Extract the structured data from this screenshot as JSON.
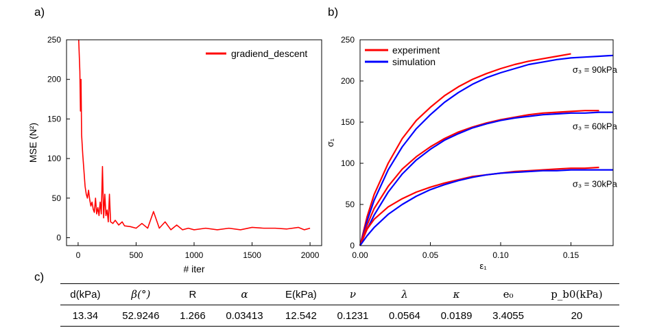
{
  "panel_labels": {
    "a": "a)",
    "b": "b)",
    "c": "c)"
  },
  "chart_data": [
    {
      "type": "line",
      "panel": "a)",
      "xlabel": "# iter",
      "ylabel": "MSE  (N²)",
      "xlim": [
        -100,
        2100
      ],
      "ylim": [
        -10,
        250
      ],
      "xticks": [
        0,
        500,
        1000,
        1500,
        2000
      ],
      "yticks": [
        0,
        50,
        100,
        150,
        200,
        250
      ],
      "legend": "top-right",
      "series": [
        {
          "name": "gradiend_descent",
          "color": "#ff0000",
          "points": [
            [
              5,
              250
            ],
            [
              10,
              230
            ],
            [
              15,
              210
            ],
            [
              20,
              160
            ],
            [
              25,
              200
            ],
            [
              30,
              130
            ],
            [
              40,
              105
            ],
            [
              50,
              85
            ],
            [
              60,
              65
            ],
            [
              70,
              55
            ],
            [
              80,
              50
            ],
            [
              90,
              60
            ],
            [
              100,
              48
            ],
            [
              110,
              40
            ],
            [
              120,
              45
            ],
            [
              130,
              36
            ],
            [
              140,
              32
            ],
            [
              150,
              50
            ],
            [
              160,
              30
            ],
            [
              170,
              38
            ],
            [
              180,
              28
            ],
            [
              190,
              45
            ],
            [
              200,
              30
            ],
            [
              210,
              90
            ],
            [
              220,
              25
            ],
            [
              230,
              55
            ],
            [
              240,
              28
            ],
            [
              250,
              35
            ],
            [
              260,
              20
            ],
            [
              270,
              55
            ],
            [
              280,
              20
            ],
            [
              300,
              18
            ],
            [
              320,
              22
            ],
            [
              350,
              16
            ],
            [
              380,
              20
            ],
            [
              400,
              15
            ],
            [
              450,
              14
            ],
            [
              500,
              12
            ],
            [
              550,
              18
            ],
            [
              600,
              12
            ],
            [
              650,
              33
            ],
            [
              700,
              12
            ],
            [
              750,
              20
            ],
            [
              800,
              10
            ],
            [
              850,
              16
            ],
            [
              900,
              10
            ],
            [
              950,
              12
            ],
            [
              1000,
              10
            ],
            [
              1100,
              12
            ],
            [
              1200,
              10
            ],
            [
              1300,
              12
            ],
            [
              1400,
              10
            ],
            [
              1500,
              13
            ],
            [
              1600,
              12
            ],
            [
              1700,
              12
            ],
            [
              1800,
              11
            ],
            [
              1900,
              13
            ],
            [
              1950,
              10
            ],
            [
              2000,
              12
            ]
          ]
        }
      ]
    },
    {
      "type": "line",
      "panel": "b)",
      "xlabel": "ε₁",
      "ylabel": "σ₁",
      "xlim": [
        0,
        0.18
      ],
      "ylim": [
        0,
        250
      ],
      "xticks": [
        0.0,
        0.05,
        0.1,
        0.15
      ],
      "xtick_labels": [
        "0.00",
        "0.05",
        "0.10",
        "0.15"
      ],
      "yticks": [
        0,
        50,
        100,
        150,
        200,
        250
      ],
      "legend": "top-left",
      "series": [
        {
          "name": "experiment",
          "color": "#ff0000"
        },
        {
          "name": "simulation",
          "color": "#0000ff"
        }
      ],
      "curves": [
        {
          "annotation": "σ₃ = 90kPa",
          "experiment": [
            [
              0,
              0
            ],
            [
              0.005,
              35
            ],
            [
              0.01,
              62
            ],
            [
              0.02,
              100
            ],
            [
              0.03,
              130
            ],
            [
              0.04,
              152
            ],
            [
              0.05,
              168
            ],
            [
              0.06,
              182
            ],
            [
              0.07,
              193
            ],
            [
              0.08,
              202
            ],
            [
              0.09,
              209
            ],
            [
              0.1,
              215
            ],
            [
              0.11,
              220
            ],
            [
              0.12,
              224
            ],
            [
              0.13,
              227
            ],
            [
              0.14,
              230
            ],
            [
              0.15,
              233
            ]
          ],
          "simulation": [
            [
              0,
              0
            ],
            [
              0.005,
              30
            ],
            [
              0.01,
              55
            ],
            [
              0.02,
              92
            ],
            [
              0.03,
              120
            ],
            [
              0.04,
              142
            ],
            [
              0.05,
              159
            ],
            [
              0.06,
              174
            ],
            [
              0.07,
              186
            ],
            [
              0.08,
              196
            ],
            [
              0.09,
              204
            ],
            [
              0.1,
              210
            ],
            [
              0.11,
              215
            ],
            [
              0.12,
              220
            ],
            [
              0.13,
              223
            ],
            [
              0.14,
              226
            ],
            [
              0.15,
              228
            ],
            [
              0.16,
              229
            ],
            [
              0.17,
              230
            ],
            [
              0.18,
              231
            ]
          ]
        },
        {
          "annotation": "σ₃ = 60kPa",
          "experiment": [
            [
              0,
              0
            ],
            [
              0.005,
              25
            ],
            [
              0.01,
              45
            ],
            [
              0.02,
              72
            ],
            [
              0.03,
              93
            ],
            [
              0.04,
              108
            ],
            [
              0.05,
              120
            ],
            [
              0.06,
              130
            ],
            [
              0.07,
              138
            ],
            [
              0.08,
              144
            ],
            [
              0.09,
              149
            ],
            [
              0.1,
              153
            ],
            [
              0.11,
              156
            ],
            [
              0.12,
              159
            ],
            [
              0.13,
              161
            ],
            [
              0.14,
              162
            ],
            [
              0.15,
              163
            ],
            [
              0.16,
              164
            ],
            [
              0.17,
              164
            ]
          ],
          "simulation": [
            [
              0,
              0
            ],
            [
              0.005,
              20
            ],
            [
              0.01,
              37
            ],
            [
              0.02,
              65
            ],
            [
              0.03,
              87
            ],
            [
              0.04,
              104
            ],
            [
              0.05,
              117
            ],
            [
              0.06,
              128
            ],
            [
              0.07,
              136
            ],
            [
              0.08,
              143
            ],
            [
              0.09,
              148
            ],
            [
              0.1,
              152
            ],
            [
              0.11,
              155
            ],
            [
              0.12,
              157
            ],
            [
              0.13,
              159
            ],
            [
              0.14,
              160
            ],
            [
              0.15,
              161
            ],
            [
              0.16,
              161
            ],
            [
              0.17,
              162
            ],
            [
              0.18,
              162
            ]
          ]
        },
        {
          "annotation": "σ₃ = 30kPa",
          "experiment": [
            [
              0,
              0
            ],
            [
              0.005,
              20
            ],
            [
              0.01,
              32
            ],
            [
              0.02,
              47
            ],
            [
              0.03,
              57
            ],
            [
              0.04,
              65
            ],
            [
              0.05,
              71
            ],
            [
              0.06,
              76
            ],
            [
              0.07,
              80
            ],
            [
              0.08,
              84
            ],
            [
              0.09,
              86
            ],
            [
              0.1,
              88
            ],
            [
              0.11,
              90
            ],
            [
              0.12,
              91
            ],
            [
              0.13,
              92
            ],
            [
              0.14,
              93
            ],
            [
              0.15,
              94
            ],
            [
              0.16,
              94
            ],
            [
              0.17,
              95
            ]
          ],
          "simulation": [
            [
              0,
              0
            ],
            [
              0.005,
              12
            ],
            [
              0.01,
              22
            ],
            [
              0.02,
              38
            ],
            [
              0.03,
              50
            ],
            [
              0.04,
              60
            ],
            [
              0.05,
              68
            ],
            [
              0.06,
              74
            ],
            [
              0.07,
              79
            ],
            [
              0.08,
              83
            ],
            [
              0.09,
              86
            ],
            [
              0.1,
              88
            ],
            [
              0.11,
              89
            ],
            [
              0.12,
              90
            ],
            [
              0.13,
              91
            ],
            [
              0.14,
              91
            ],
            [
              0.15,
              92
            ],
            [
              0.16,
              92
            ],
            [
              0.17,
              92
            ],
            [
              0.18,
              92
            ]
          ]
        }
      ]
    }
  ],
  "table": {
    "headers": [
      {
        "text": "d(kPa)",
        "style": "plain"
      },
      {
        "text": "β(°)",
        "style": "sym"
      },
      {
        "text": "R",
        "style": "plain"
      },
      {
        "text": "α",
        "style": "sym"
      },
      {
        "text": "E(kPa)",
        "style": "plain"
      },
      {
        "text": "ν",
        "style": "sym"
      },
      {
        "text": "λ",
        "style": "sym"
      },
      {
        "text": "κ",
        "style": "sym"
      },
      {
        "text": "e₀",
        "style": "sym-up"
      },
      {
        "text": "p_b0(kPa)",
        "style": "sym-up"
      }
    ],
    "values": [
      "13.34",
      "52.9246",
      "1.266",
      "0.03413",
      "12.542",
      "0.1231",
      "0.0564",
      "0.0189",
      "3.4055",
      "20"
    ]
  }
}
